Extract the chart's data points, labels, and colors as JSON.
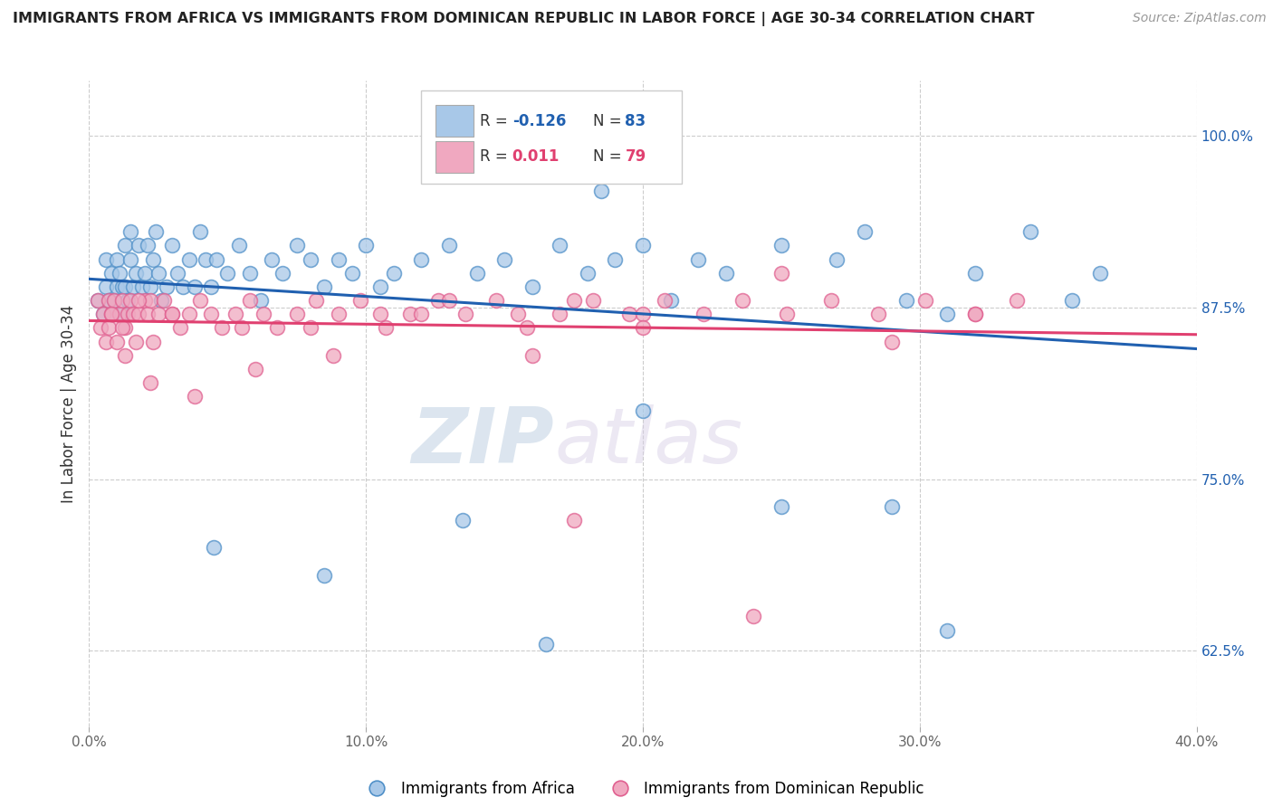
{
  "title": "IMMIGRANTS FROM AFRICA VS IMMIGRANTS FROM DOMINICAN REPUBLIC IN LABOR FORCE | AGE 30-34 CORRELATION CHART",
  "source": "Source: ZipAtlas.com",
  "ylabel": "In Labor Force | Age 30-34",
  "ytick_labels": [
    "62.5%",
    "75.0%",
    "87.5%",
    "100.0%"
  ],
  "ytick_values": [
    0.625,
    0.75,
    0.875,
    1.0
  ],
  "xtick_labels": [
    "0.0%",
    "10.0%",
    "20.0%",
    "30.0%",
    "40.0%"
  ],
  "xtick_values": [
    0.0,
    0.1,
    0.2,
    0.3,
    0.4
  ],
  "xlim": [
    0.0,
    0.4
  ],
  "ylim": [
    0.57,
    1.04
  ],
  "blue_r": -0.126,
  "blue_n": 83,
  "pink_r": 0.011,
  "pink_n": 79,
  "blue_color": "#a8c8e8",
  "pink_color": "#f0a8c0",
  "blue_edge_color": "#5090c8",
  "pink_edge_color": "#e06090",
  "blue_line_color": "#2060b0",
  "pink_line_color": "#e04070",
  "legend_label_blue": "Immigrants from Africa",
  "legend_label_pink": "Immigrants from Dominican Republic",
  "watermark_zip": "ZIP",
  "watermark_atlas": "atlas",
  "background_color": "#ffffff",
  "grid_color": "#cccccc",
  "blue_scatter_x": [
    0.003,
    0.005,
    0.006,
    0.006,
    0.007,
    0.008,
    0.008,
    0.009,
    0.01,
    0.01,
    0.011,
    0.012,
    0.012,
    0.013,
    0.013,
    0.014,
    0.015,
    0.015,
    0.016,
    0.017,
    0.018,
    0.019,
    0.02,
    0.021,
    0.022,
    0.023,
    0.024,
    0.025,
    0.026,
    0.028,
    0.03,
    0.032,
    0.034,
    0.036,
    0.038,
    0.04,
    0.042,
    0.044,
    0.046,
    0.05,
    0.054,
    0.058,
    0.062,
    0.066,
    0.07,
    0.075,
    0.08,
    0.085,
    0.09,
    0.095,
    0.1,
    0.105,
    0.11,
    0.12,
    0.13,
    0.14,
    0.15,
    0.16,
    0.17,
    0.18,
    0.19,
    0.2,
    0.21,
    0.22,
    0.23,
    0.25,
    0.27,
    0.28,
    0.295,
    0.31,
    0.32,
    0.34,
    0.355,
    0.365,
    0.2,
    0.165,
    0.29,
    0.31,
    0.25,
    0.185,
    0.135,
    0.085,
    0.045
  ],
  "blue_scatter_y": [
    0.88,
    0.87,
    0.91,
    0.89,
    0.88,
    0.87,
    0.9,
    0.88,
    0.91,
    0.89,
    0.9,
    0.89,
    0.87,
    0.92,
    0.89,
    0.88,
    0.93,
    0.91,
    0.89,
    0.9,
    0.92,
    0.89,
    0.9,
    0.92,
    0.89,
    0.91,
    0.93,
    0.9,
    0.88,
    0.89,
    0.92,
    0.9,
    0.89,
    0.91,
    0.89,
    0.93,
    0.91,
    0.89,
    0.91,
    0.9,
    0.92,
    0.9,
    0.88,
    0.91,
    0.9,
    0.92,
    0.91,
    0.89,
    0.91,
    0.9,
    0.92,
    0.89,
    0.9,
    0.91,
    0.92,
    0.9,
    0.91,
    0.89,
    0.92,
    0.9,
    0.91,
    0.92,
    0.88,
    0.91,
    0.9,
    0.92,
    0.91,
    0.93,
    0.88,
    0.87,
    0.9,
    0.93,
    0.88,
    0.9,
    0.8,
    0.63,
    0.73,
    0.64,
    0.73,
    0.96,
    0.72,
    0.68,
    0.7
  ],
  "pink_scatter_x": [
    0.003,
    0.004,
    0.005,
    0.006,
    0.007,
    0.007,
    0.008,
    0.009,
    0.01,
    0.011,
    0.012,
    0.013,
    0.013,
    0.014,
    0.015,
    0.016,
    0.017,
    0.018,
    0.02,
    0.021,
    0.022,
    0.023,
    0.025,
    0.027,
    0.03,
    0.033,
    0.036,
    0.04,
    0.044,
    0.048,
    0.053,
    0.058,
    0.063,
    0.068,
    0.075,
    0.082,
    0.09,
    0.098,
    0.107,
    0.116,
    0.126,
    0.136,
    0.147,
    0.158,
    0.17,
    0.182,
    0.195,
    0.208,
    0.222,
    0.236,
    0.252,
    0.268,
    0.285,
    0.302,
    0.32,
    0.335,
    0.2,
    0.175,
    0.155,
    0.13,
    0.105,
    0.08,
    0.055,
    0.03,
    0.018,
    0.012,
    0.008,
    0.022,
    0.038,
    0.06,
    0.088,
    0.12,
    0.16,
    0.2,
    0.25,
    0.29,
    0.32,
    0.175,
    0.24
  ],
  "pink_scatter_y": [
    0.88,
    0.86,
    0.87,
    0.85,
    0.88,
    0.86,
    0.87,
    0.88,
    0.85,
    0.87,
    0.88,
    0.86,
    0.84,
    0.87,
    0.88,
    0.87,
    0.85,
    0.87,
    0.88,
    0.87,
    0.88,
    0.85,
    0.87,
    0.88,
    0.87,
    0.86,
    0.87,
    0.88,
    0.87,
    0.86,
    0.87,
    0.88,
    0.87,
    0.86,
    0.87,
    0.88,
    0.87,
    0.88,
    0.86,
    0.87,
    0.88,
    0.87,
    0.88,
    0.86,
    0.87,
    0.88,
    0.87,
    0.88,
    0.87,
    0.88,
    0.87,
    0.88,
    0.87,
    0.88,
    0.87,
    0.88,
    0.87,
    0.88,
    0.87,
    0.88,
    0.87,
    0.86,
    0.86,
    0.87,
    0.88,
    0.86,
    0.87,
    0.82,
    0.81,
    0.83,
    0.84,
    0.87,
    0.84,
    0.86,
    0.9,
    0.85,
    0.87,
    0.72,
    0.65
  ]
}
